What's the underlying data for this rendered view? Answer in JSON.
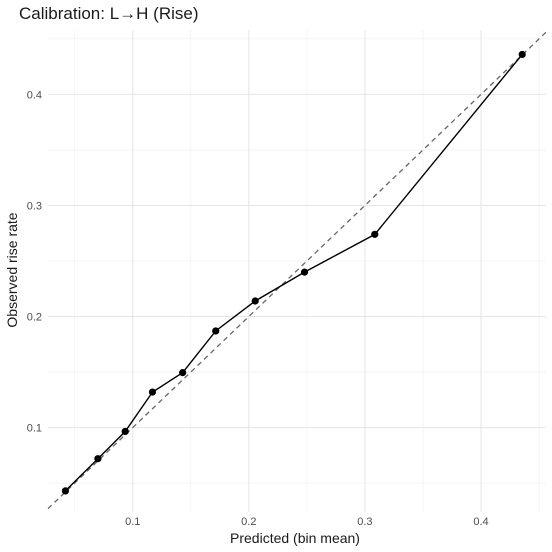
{
  "chart_data": {
    "type": "line",
    "title": "Calibration: L→H (Rise)",
    "xlabel": "Predicted (bin mean)",
    "ylabel": "Observed rise rate",
    "xlim": [
      0.027,
      0.456
    ],
    "ylim": [
      0.024,
      0.458
    ],
    "x_ticks": [
      0.1,
      0.2,
      0.3,
      0.4
    ],
    "y_ticks": [
      0.1,
      0.2,
      0.3,
      0.4
    ],
    "x_tick_labels": [
      "0.1",
      "0.2",
      "0.3",
      "0.4"
    ],
    "y_tick_labels": [
      "0.1",
      "0.2",
      "0.3",
      "0.4"
    ],
    "grid": true,
    "reference_line": {
      "slope": 1,
      "intercept": 0,
      "style": "dashed",
      "color": "#666666"
    },
    "series": [
      {
        "x": [
          0.042,
          0.07,
          0.0935,
          0.117,
          0.143,
          0.1715,
          0.2055,
          0.248,
          0.3085,
          0.4355
        ],
        "y": [
          0.043,
          0.072,
          0.0965,
          0.132,
          0.1495,
          0.187,
          0.214,
          0.24,
          0.274,
          0.436
        ],
        "color": "#000000"
      }
    ]
  }
}
